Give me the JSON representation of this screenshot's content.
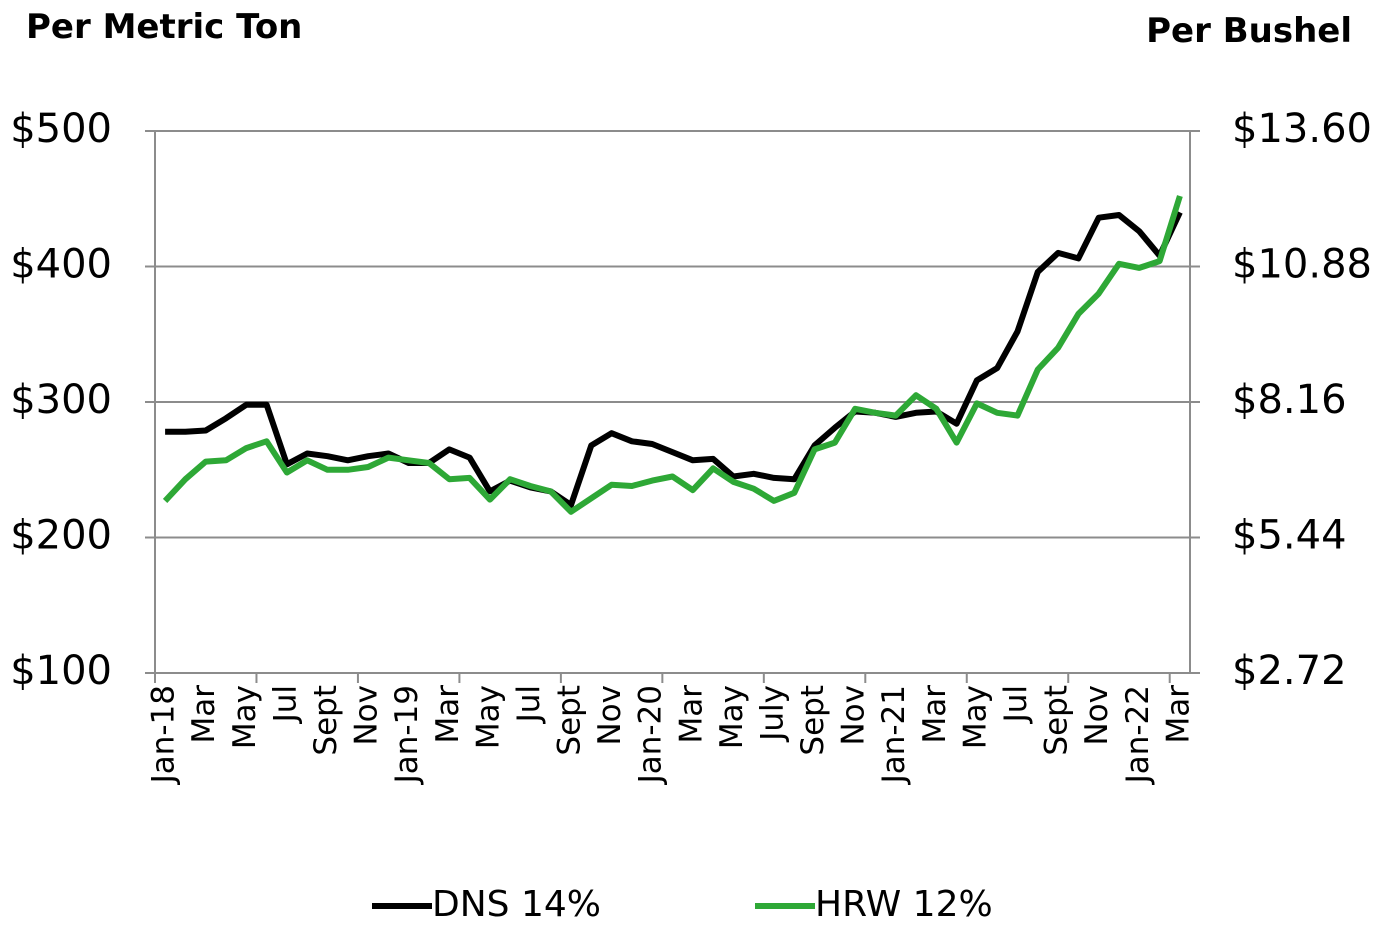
{
  "chart_data": {
    "type": "line",
    "y_label": "Per Metric Ton",
    "y2_label": "Per Bushel",
    "categories": [
      "Jan-18",
      null,
      "Mar",
      null,
      "May",
      null,
      "Jul",
      null,
      "Sept",
      null,
      "Nov",
      null,
      "Jan-19",
      null,
      "Mar",
      null,
      "May",
      null,
      "Jul",
      null,
      "Sept",
      null,
      "Nov",
      null,
      "Jan-20",
      null,
      "Mar",
      null,
      "May",
      null,
      "July",
      null,
      "Sept",
      null,
      "Nov",
      null,
      "Jan-21",
      null,
      "Mar",
      null,
      "May",
      null,
      "Jul",
      null,
      "Sept",
      null,
      "Nov",
      null,
      "Jan-22",
      null,
      "Mar"
    ],
    "series": [
      {
        "name": "DNS 14%",
        "color": "#000000",
        "values": [
          278,
          278,
          279,
          288,
          298,
          298,
          254,
          262,
          260,
          257,
          260,
          262,
          255,
          255,
          265,
          259,
          234,
          242,
          237,
          234,
          224,
          268,
          277,
          271,
          269,
          263,
          257,
          258,
          245,
          247,
          244,
          243,
          268,
          281,
          293,
          292,
          289,
          292,
          293,
          284,
          316,
          325,
          352,
          396,
          410,
          406,
          436,
          438,
          426,
          408,
          440
        ]
      },
      {
        "name": "HRW 12%",
        "color": "#2ea836",
        "values": [
          227,
          243,
          256,
          257,
          266,
          271,
          248,
          257,
          250,
          250,
          252,
          259,
          257,
          255,
          243,
          244,
          228,
          243,
          238,
          234,
          219,
          229,
          239,
          238,
          242,
          245,
          235,
          251,
          241,
          236,
          227,
          233,
          265,
          270,
          295,
          292,
          290,
          305,
          295,
          270,
          299,
          292,
          290,
          324,
          340,
          365,
          380,
          402,
          399,
          404,
          452
        ]
      }
    ],
    "ylim": [
      100,
      500
    ],
    "yticks": [
      {
        "value": 100,
        "label": "$100"
      },
      {
        "value": 200,
        "label": "$200"
      },
      {
        "value": 300,
        "label": "$300"
      },
      {
        "value": 400,
        "label": "$400"
      },
      {
        "value": 500,
        "label": "$500"
      }
    ],
    "y2lim": [
      2.72,
      13.6
    ],
    "y2ticks": [
      {
        "value": 2.72,
        "label": "$2.72"
      },
      {
        "value": 5.44,
        "label": "$5.44"
      },
      {
        "value": 8.16,
        "label": "$8.16"
      },
      {
        "value": 10.88,
        "label": "$10.88"
      },
      {
        "value": 13.6,
        "label": "$13.60"
      }
    ],
    "grid": true,
    "legend": "bottom"
  }
}
